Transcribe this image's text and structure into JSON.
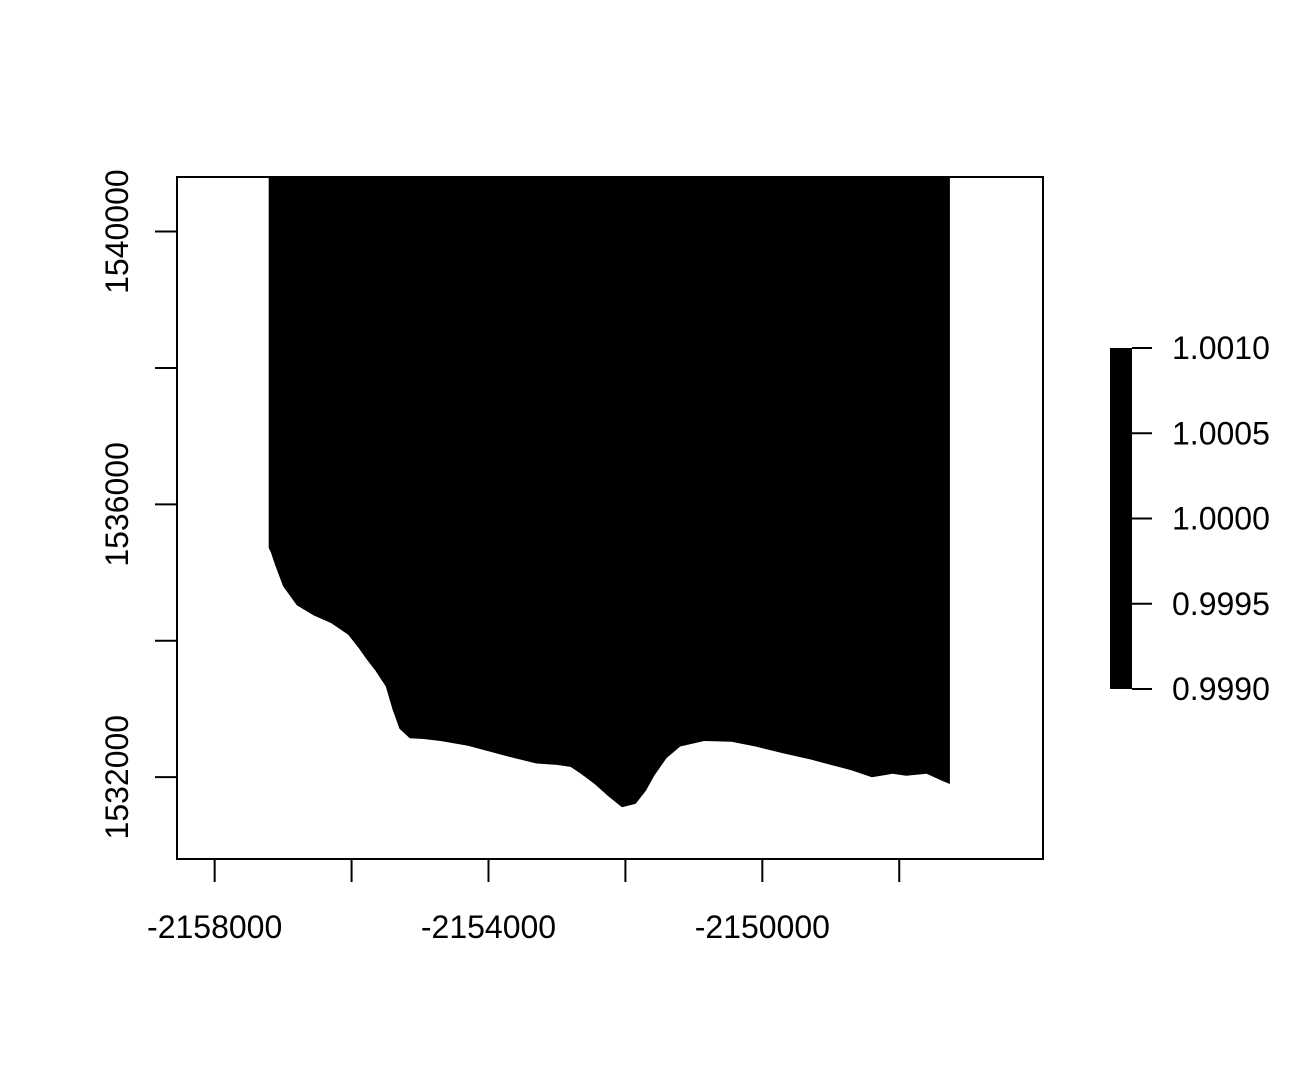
{
  "chart_data": {
    "type": "heatmap",
    "title": "",
    "xlabel": "",
    "ylabel": "",
    "xlim": [
      -2158550,
      -2145900
    ],
    "ylim": [
      1530800,
      1540800
    ],
    "x_ticks": [
      {
        "value": -2158000,
        "label": "-2158000"
      },
      {
        "value": -2156000,
        "label": ""
      },
      {
        "value": -2154000,
        "label": "-2154000"
      },
      {
        "value": -2152000,
        "label": ""
      },
      {
        "value": -2150000,
        "label": "-2150000"
      },
      {
        "value": -2148000,
        "label": ""
      }
    ],
    "y_ticks": [
      {
        "value": 1532000,
        "label": "1532000"
      },
      {
        "value": 1534000,
        "label": ""
      },
      {
        "value": 1536000,
        "label": "1536000"
      },
      {
        "value": 1538000,
        "label": ""
      },
      {
        "value": 1540000,
        "label": "1540000"
      }
    ],
    "raster_color": "#000000",
    "raster_value": 1,
    "raster_outline": [
      [
        -2157210,
        1540800
      ],
      [
        -2147260,
        1540800
      ],
      [
        -2147260,
        1531900
      ],
      [
        -2147380,
        1531950
      ],
      [
        -2147600,
        1532050
      ],
      [
        -2147900,
        1532020
      ],
      [
        -2148100,
        1532050
      ],
      [
        -2148400,
        1532000
      ],
      [
        -2148700,
        1532100
      ],
      [
        -2149000,
        1532180
      ],
      [
        -2149300,
        1532260
      ],
      [
        -2149700,
        1532350
      ],
      [
        -2150100,
        1532450
      ],
      [
        -2150450,
        1532520
      ],
      [
        -2150850,
        1532530
      ],
      [
        -2151200,
        1532450
      ],
      [
        -2151400,
        1532280
      ],
      [
        -2151580,
        1532020
      ],
      [
        -2151700,
        1531800
      ],
      [
        -2151850,
        1531610
      ],
      [
        -2152050,
        1531560
      ],
      [
        -2152250,
        1531720
      ],
      [
        -2152450,
        1531900
      ],
      [
        -2152650,
        1532050
      ],
      [
        -2152800,
        1532150
      ],
      [
        -2153000,
        1532180
      ],
      [
        -2153300,
        1532200
      ],
      [
        -2153700,
        1532300
      ],
      [
        -2154000,
        1532380
      ],
      [
        -2154300,
        1532460
      ],
      [
        -2154700,
        1532530
      ],
      [
        -2154950,
        1532560
      ],
      [
        -2155150,
        1532570
      ],
      [
        -2155300,
        1532710
      ],
      [
        -2155400,
        1532990
      ],
      [
        -2155500,
        1533330
      ],
      [
        -2155650,
        1533560
      ],
      [
        -2155780,
        1533730
      ],
      [
        -2155900,
        1533900
      ],
      [
        -2156050,
        1534090
      ],
      [
        -2156300,
        1534260
      ],
      [
        -2156550,
        1534370
      ],
      [
        -2156800,
        1534520
      ],
      [
        -2157000,
        1534800
      ],
      [
        -2157120,
        1535120
      ],
      [
        -2157180,
        1535300
      ],
      [
        -2157210,
        1535360
      ]
    ],
    "colorbar": {
      "range": [
        0.999,
        1.001
      ],
      "tick_values": [
        0.999,
        0.9995,
        1.0,
        1.0005,
        1.001
      ],
      "tick_labels": [
        "0.9990",
        "0.9995",
        "1.0000",
        "1.0005",
        "1.0010"
      ],
      "color": "#000000"
    }
  }
}
